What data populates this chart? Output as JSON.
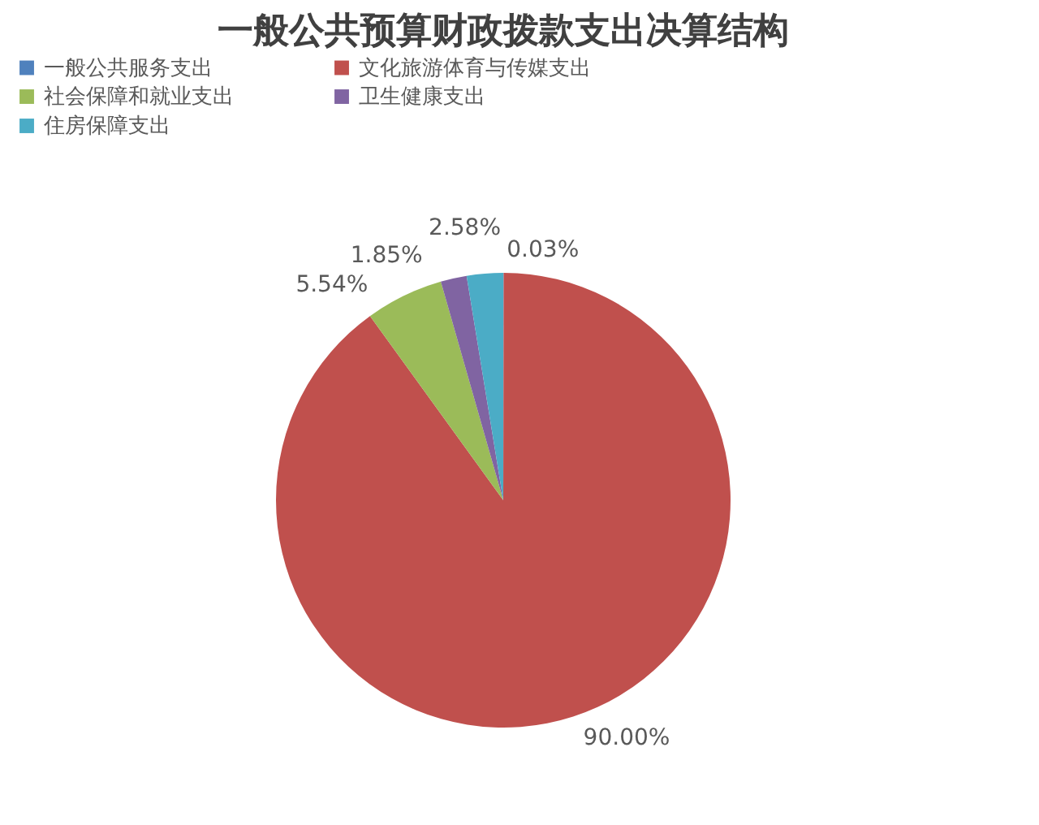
{
  "chart_data": {
    "type": "pie",
    "title": "一般公共预算财政拨款支出决算结构",
    "categories": [
      "一般公共服务支出",
      "文化旅游体育与传媒支出",
      "社会保障和就业支出",
      "卫生健康支出",
      "住房保障支出"
    ],
    "values": [
      0.03,
      90.0,
      5.54,
      1.85,
      2.58
    ],
    "colors": [
      "#4f81bd",
      "#c0504d",
      "#9bbb59",
      "#8064a2",
      "#4bacc6"
    ],
    "value_labels": [
      "0.03%",
      "90.00%",
      "5.54%",
      "1.85%",
      "2.58%"
    ],
    "legend": "top"
  }
}
